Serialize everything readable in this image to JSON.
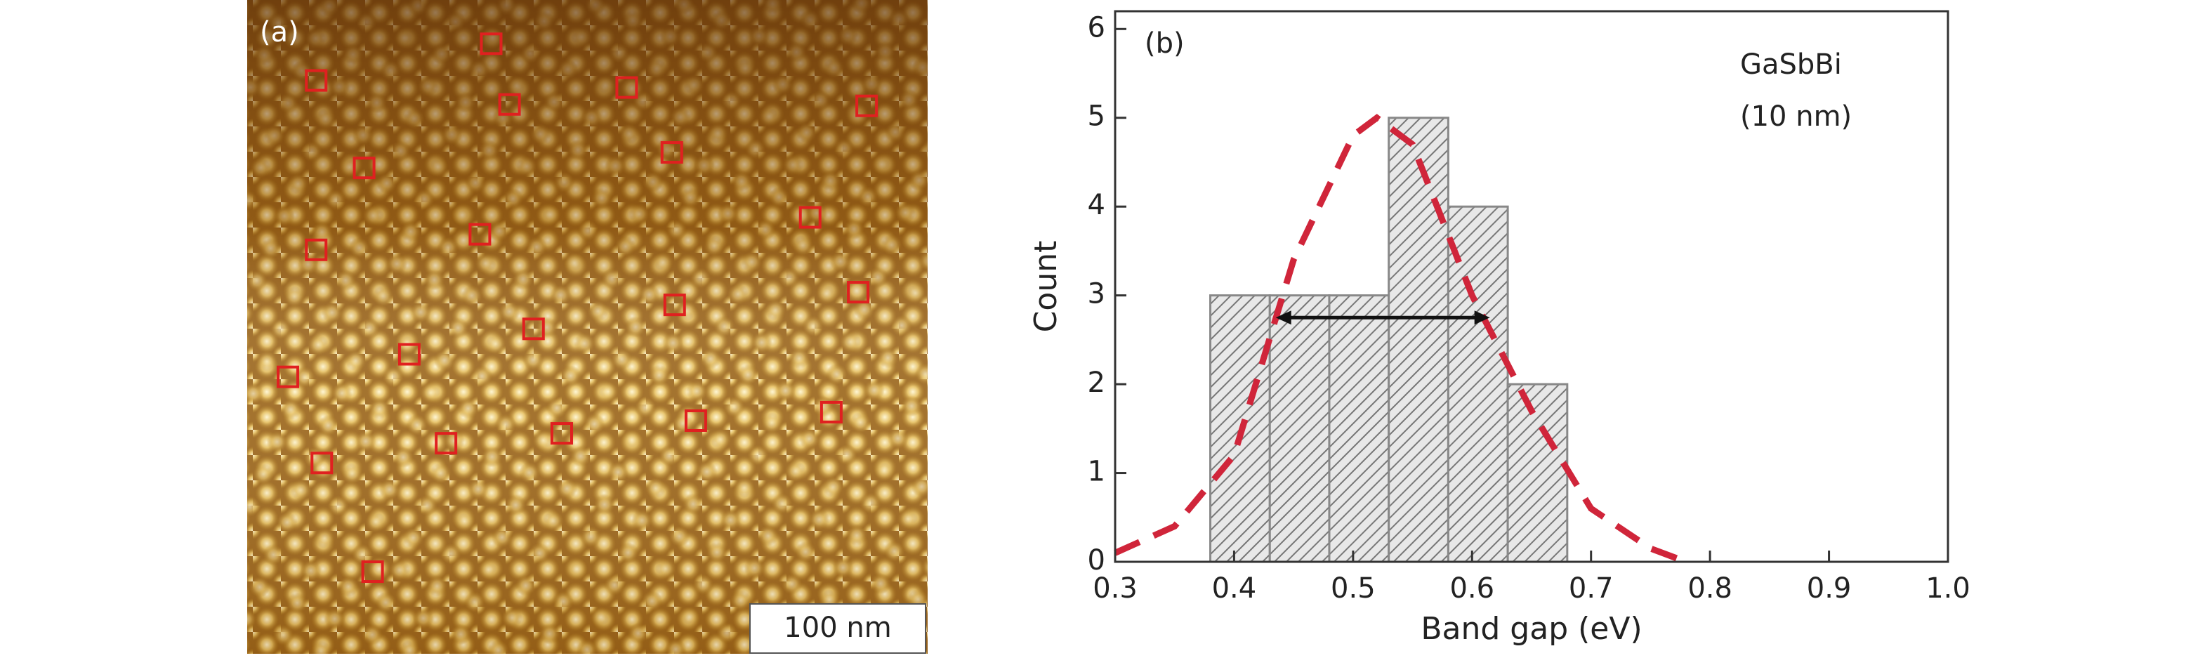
{
  "afm_image": {
    "label": "(a)",
    "scale_bar": "100 nm"
  },
  "chart_data": {
    "type": "histogram",
    "panel_label": "(b)",
    "annotation": [
      "GaSbBi",
      "(10 nm)"
    ],
    "xlabel": "Band gap (eV)",
    "ylabel": "Count",
    "bins": [
      0.38,
      0.43,
      0.48,
      0.53,
      0.58,
      0.63,
      0.68
    ],
    "values": [
      3,
      3,
      3,
      5,
      4,
      2
    ],
    "color": "#888888",
    "fit": {
      "color": "#d0253a",
      "x": [
        0.3,
        0.35,
        0.4,
        0.45,
        0.5,
        0.52,
        0.55,
        0.6,
        0.65,
        0.7,
        0.75,
        0.78
      ],
      "values": [
        0.1,
        0.4,
        1.2,
        3.4,
        4.8,
        5,
        4.7,
        3.0,
        1.7,
        0.6,
        0.15,
        0
      ]
    },
    "fwhm": {
      "x": [
        0.435,
        0.615
      ],
      "y": 2.75
    },
    "xlim": [
      0.3,
      1.0
    ],
    "xticks": [
      0.3,
      0.4,
      0.5,
      0.6,
      0.7,
      0.8,
      0.9,
      {
        "value": 1,
        "label": "1.0"
      }
    ],
    "ylim": [
      0,
      6.2
    ],
    "yticks": [
      0,
      1,
      2,
      3,
      4,
      5,
      6
    ]
  }
}
